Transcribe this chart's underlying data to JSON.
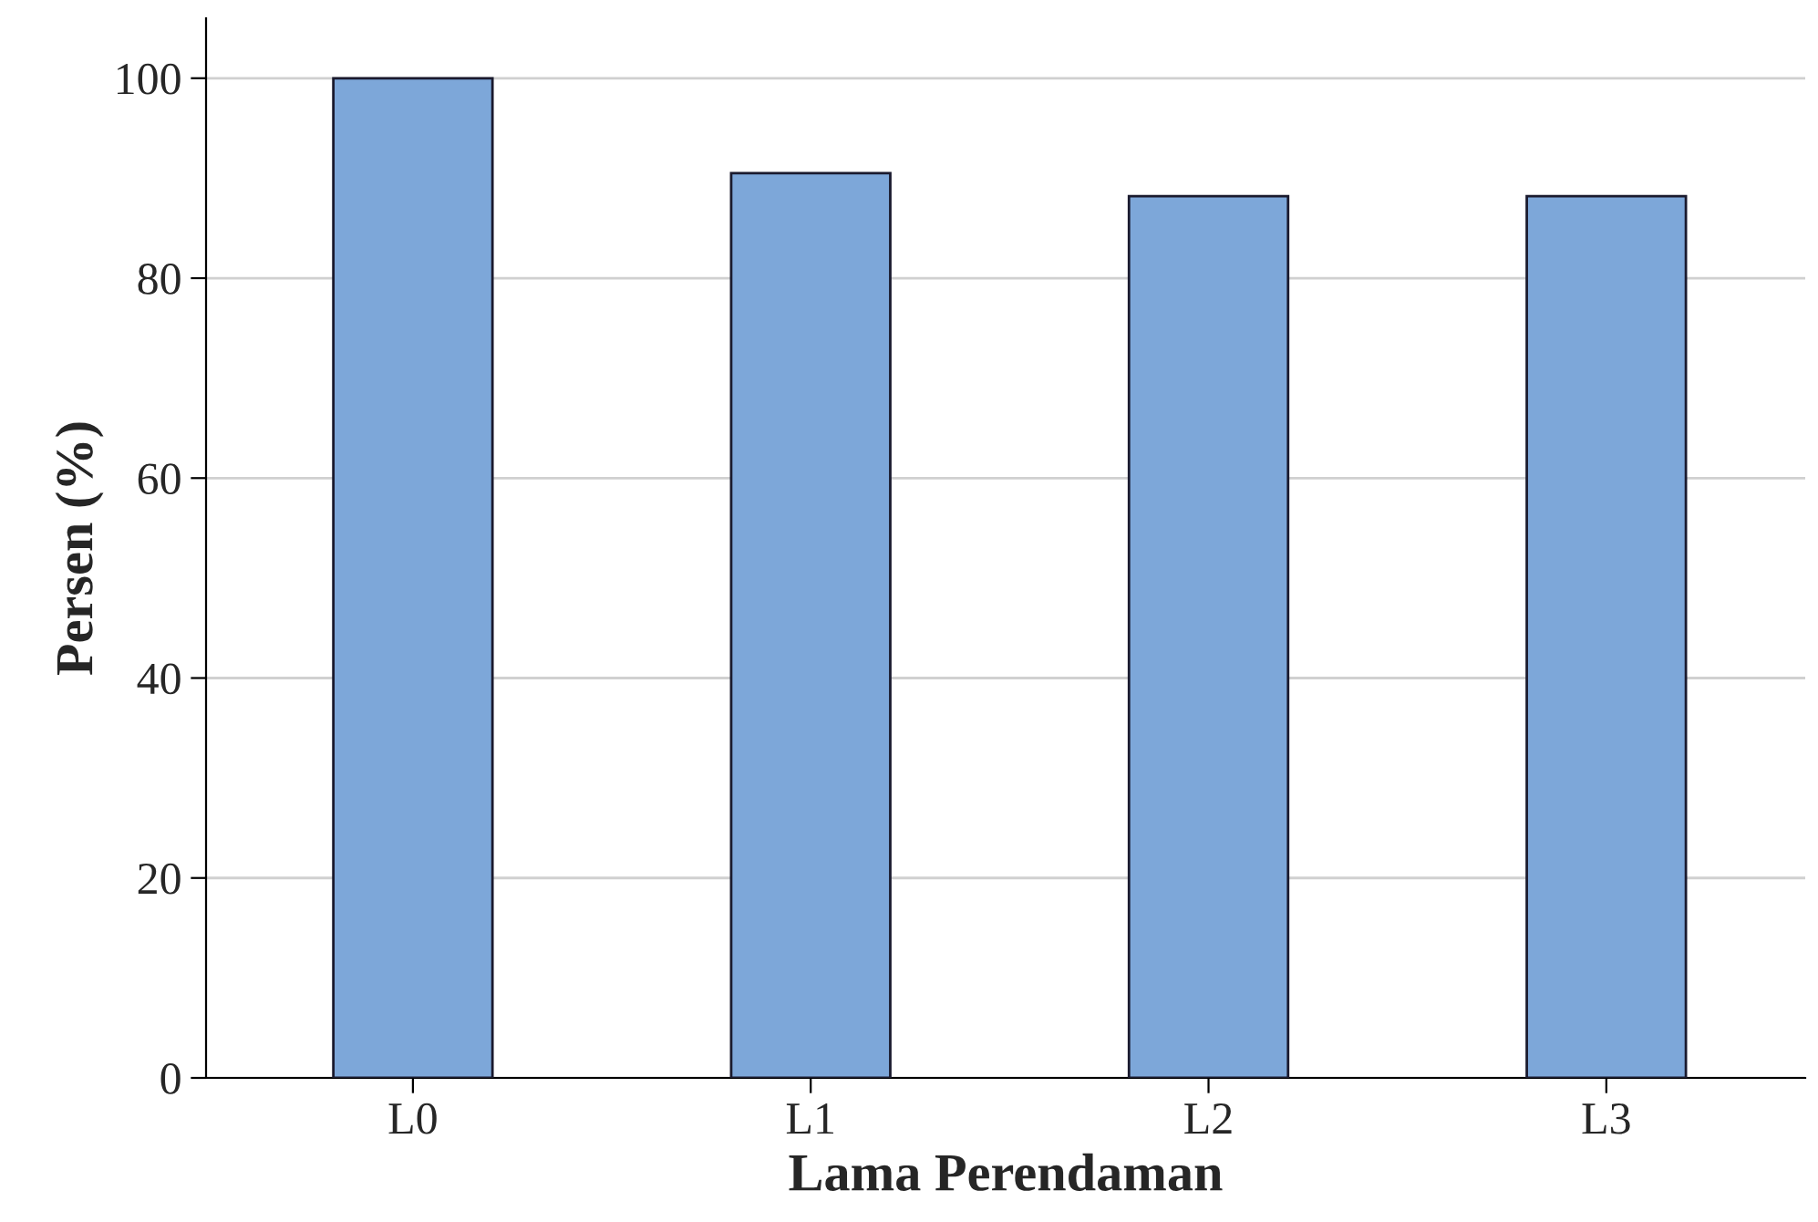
{
  "chart_data": {
    "type": "bar",
    "xlabel": "Lama Perendaman",
    "ylabel": "Persen (%)",
    "categories": [
      "L0",
      "L1",
      "L2",
      "L3"
    ],
    "values": [
      100,
      90.5,
      88.2,
      88.2
    ],
    "color": "#7da7d9",
    "ylim": [
      0,
      106
    ],
    "yticks": [
      0,
      20,
      40,
      60,
      80,
      100
    ],
    "grid": "y",
    "legend": false
  }
}
